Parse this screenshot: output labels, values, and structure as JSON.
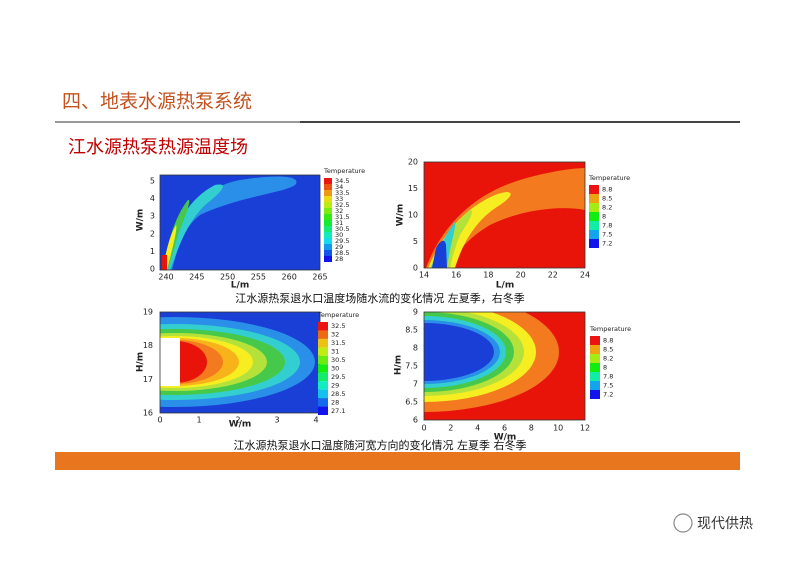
{
  "header": {
    "title": "四、地表水源热泵系统",
    "subtitle": "江水源热泵热源温度场"
  },
  "figures": [
    {
      "xlabel": "L/m",
      "ylabel": "W/m",
      "xticks": [
        "240",
        "245",
        "250",
        "255",
        "260",
        "265"
      ],
      "yticks": [
        "0",
        "1",
        "2",
        "3",
        "4",
        "5"
      ],
      "legend_title": "Temperature",
      "legend": [
        "34.5",
        "34",
        "33.5",
        "33",
        "32.5",
        "32",
        "31.5",
        "31",
        "30.5",
        "30",
        "29.5",
        "29",
        "28.5",
        "28"
      ]
    },
    {
      "xlabel": "L/m",
      "ylabel": "W/m",
      "xticks": [
        "14",
        "16",
        "18",
        "20",
        "22",
        "24"
      ],
      "yticks": [
        "0",
        "5",
        "10",
        "15",
        "20"
      ],
      "legend_title": "Temperature",
      "legend": [
        "8.8",
        "8.5",
        "8.2",
        "8",
        "7.8",
        "7.5",
        "7.2"
      ]
    },
    {
      "xlabel": "W/m",
      "ylabel": "H/m",
      "xticks": [
        "0",
        "1",
        "2",
        "3",
        "4"
      ],
      "yticks": [
        "16",
        "17",
        "18",
        "19"
      ],
      "legend_title": "Temperature",
      "legend": [
        "32.5",
        "32",
        "31.5",
        "31",
        "30.5",
        "30",
        "29.5",
        "29",
        "28.5",
        "28",
        "27.1"
      ]
    },
    {
      "xlabel": "W/m",
      "ylabel": "H/m",
      "xticks": [
        "0",
        "2",
        "4",
        "6",
        "8",
        "10",
        "12"
      ],
      "yticks": [
        "6",
        "6.5",
        "7",
        "7.5",
        "8",
        "8.5",
        "9"
      ],
      "legend_title": "Temperature",
      "legend": [
        "8.8",
        "8.5",
        "8.2",
        "8",
        "7.8",
        "7.5",
        "7.2"
      ]
    }
  ],
  "captions": [
    "江水源热泵退水口温度场随水流的变化情况 左夏季，右冬季",
    "江水源热泵退水口温度随河宽方向的变化情况 左夏季 右冬季"
  ],
  "watermark": "现代供热"
}
